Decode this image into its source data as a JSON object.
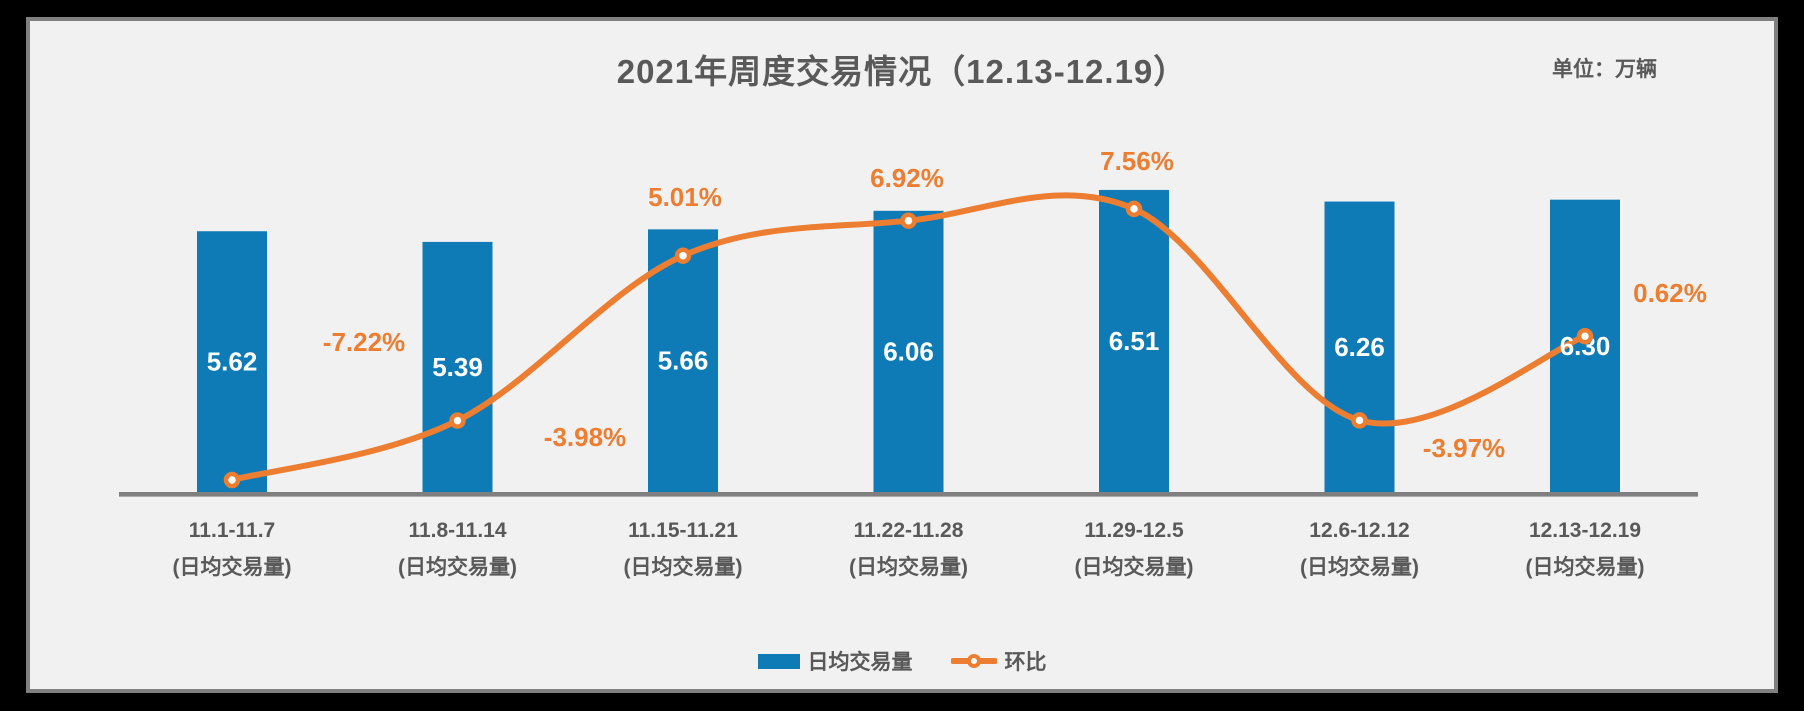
{
  "title": "2021年周度交易情况（12.13-12.19）",
  "unit_label": "单位：万辆",
  "colors": {
    "bar": "#0e7bb6",
    "line": "#ec7d31",
    "bar_value_text": "#ffffff",
    "pct_label_text": "#ec7d31",
    "marker_fill": "#ffffff",
    "axis": "#7f7f7f",
    "label_text": "#595959",
    "panel_background": "#f1f1f1",
    "panel_border": "#808080",
    "outer_background": "#000000"
  },
  "legend": {
    "position": "bottom",
    "bar_label": "日均交易量",
    "line_label": "环比"
  },
  "chart_data": {
    "type": "combo-bar-line",
    "title": "2021年周度交易情况（12.13-12.19）",
    "unit": "万辆",
    "categories": [
      "11.1-11.7",
      "11.8-11.14",
      "11.15-11.21",
      "11.22-11.28",
      "11.29-12.5",
      "12.6-12.12",
      "12.13-12.19"
    ],
    "category_sublabel": "(日均交易量)",
    "series": [
      {
        "name": "日均交易量",
        "type": "bar",
        "values": [
          5.62,
          5.39,
          5.66,
          6.06,
          6.51,
          6.26,
          6.3
        ],
        "value_labels": [
          "5.62",
          "5.39",
          "5.66",
          "6.06",
          "6.51",
          "6.26",
          "6.30"
        ]
      },
      {
        "name": "环比",
        "type": "line",
        "unit": "%",
        "values": [
          -7.22,
          -3.98,
          5.01,
          6.92,
          7.56,
          -3.97,
          0.62
        ],
        "value_labels": [
          "-7.22%",
          "-3.98%",
          "5.01%",
          "6.92%",
          "7.56%",
          "-3.97%",
          "0.62%"
        ]
      }
    ],
    "grid_lines": false,
    "y_axis_visible": false,
    "legend_position": "bottom"
  }
}
